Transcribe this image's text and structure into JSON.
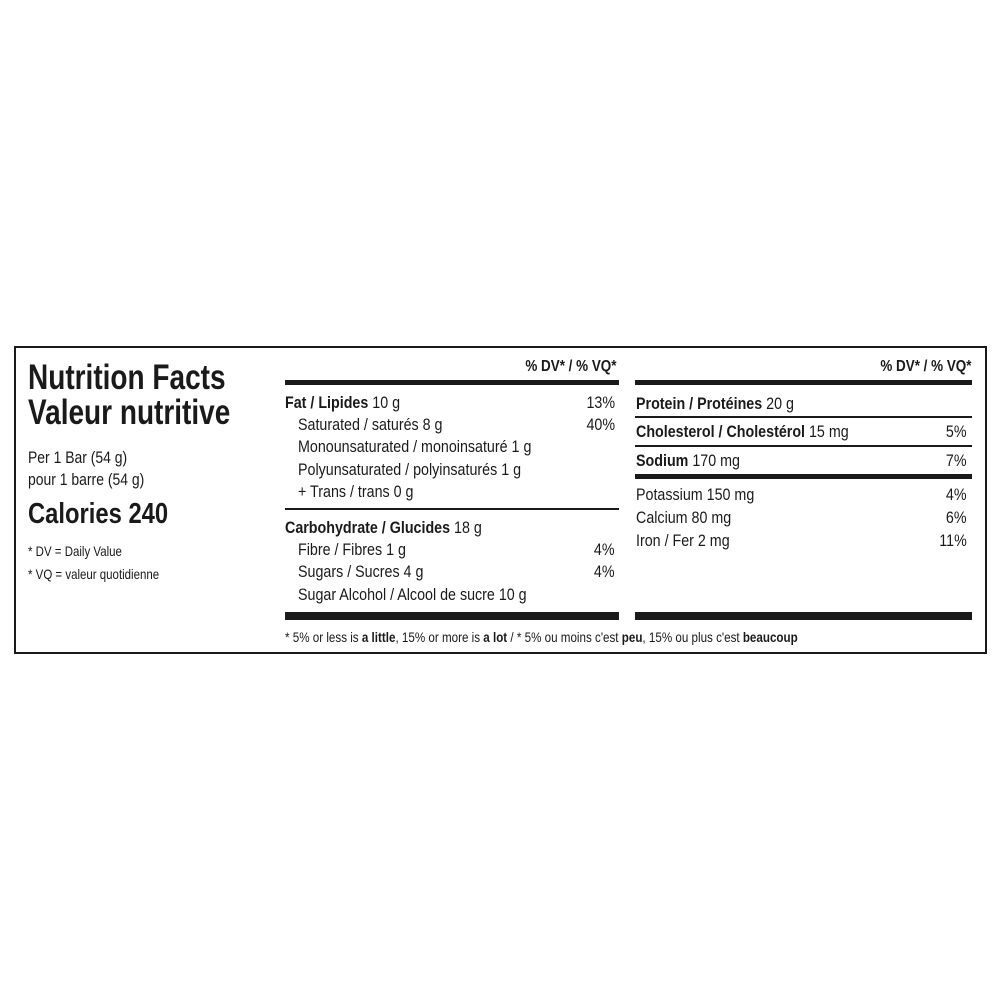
{
  "left": {
    "title_en": "Nutrition Facts",
    "title_fr": "Valeur nutritive",
    "serving_en": "Per 1 Bar (54 g)",
    "serving_fr": "pour 1 barre (54 g)",
    "calories": "Calories 240",
    "dv_note": "* DV = Daily Value",
    "vq_note": "* VQ = valeur quotidienne"
  },
  "middle": {
    "header": "% DV* / % VQ*",
    "rows": [
      {
        "bold": "Fat / Lipides",
        "text": " 10 g",
        "dv": "13%"
      },
      {
        "text": "Saturated / saturés 8 g",
        "dv": "40%"
      },
      {
        "text": "Monounsaturated / monoinsaturé 1 g"
      },
      {
        "text": "Polyunsaturated / polyinsaturés 1 g"
      },
      {
        "text": "+ Trans / trans 0 g"
      },
      {
        "bold": "Carbohydrate / Glucides",
        "text": " 18 g"
      },
      {
        "text": "Fibre / Fibres 1 g",
        "dv": "4%"
      },
      {
        "text": "Sugars / Sucres 4 g",
        "dv": "4%"
      },
      {
        "text": "Sugar Alcohol / Alcool de sucre 10 g"
      }
    ]
  },
  "right": {
    "header": "% DV* / % VQ*",
    "rows": [
      {
        "bold": "Protein / Protéines",
        "text": " 20 g"
      },
      {
        "bold": "Cholesterol / Cholestérol",
        "text": " 15 mg",
        "dv": "5%"
      },
      {
        "bold": "Sodium",
        "text": " 170 mg",
        "dv": "7%"
      },
      {
        "text": "Potassium 150 mg",
        "dv": "4%"
      },
      {
        "text": "Calcium 80 mg",
        "dv": "6%"
      },
      {
        "text": "Iron / Fer 2 mg",
        "dv": "11%"
      }
    ]
  },
  "footnote": {
    "s1": "* 5% or less is ",
    "b1": "a little",
    "s2": ", 15% or more is ",
    "b2": "a lot",
    "s3": " / * 5% ou moins c'est ",
    "b3": "peu",
    "s4": ", 15% ou plus c'est ",
    "b4": "beaucoup"
  }
}
